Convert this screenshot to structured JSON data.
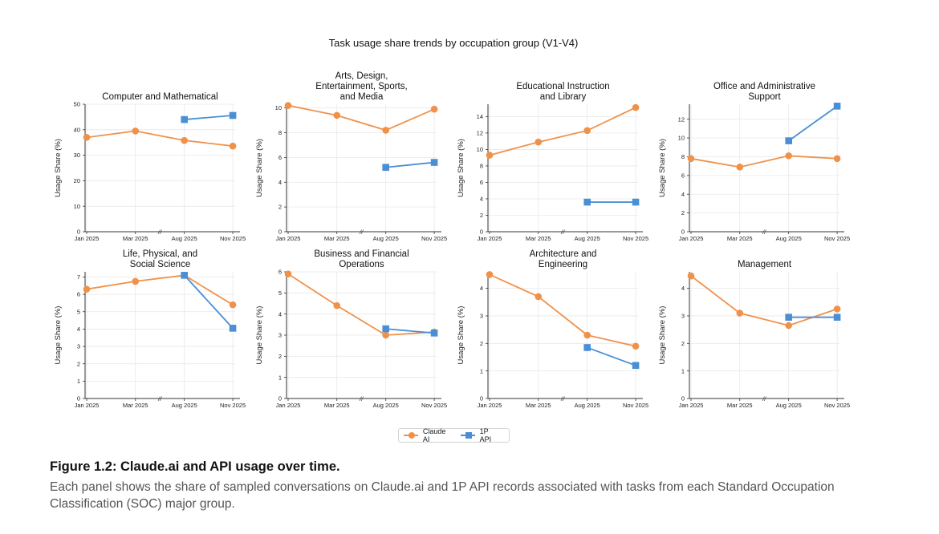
{
  "figure": {
    "title": "Task usage share trends by occupation group (V1-V4)",
    "caption_title": "Figure 1.2: Claude.ai and API usage over time.",
    "caption_text": "Each panel shows the share of sampled conversations on Claude.ai and 1P API records associated with tasks from each Standard Occupation Classification (SOC) major group."
  },
  "legend": {
    "items": [
      {
        "label": "Claude AI",
        "color": "#f0914a",
        "marker": "circle"
      },
      {
        "label": "1P API",
        "color": "#4a8fd6",
        "marker": "square"
      }
    ]
  },
  "chart_data": [
    {
      "type": "line",
      "title": [
        "Computer and Mathematical"
      ],
      "xlabel": "",
      "ylabel": "Usage Share (%)",
      "categories": [
        "Jan 2025",
        "Mar 2025",
        "Aug 2025",
        "Nov 2025"
      ],
      "axis_break": "//",
      "yticks": [
        0,
        10,
        20,
        30,
        40,
        50
      ],
      "ylim": [
        0,
        50
      ],
      "series": [
        {
          "name": "Claude AI",
          "values": [
            37.0,
            39.5,
            35.8,
            33.6
          ]
        },
        {
          "name": "1P API",
          "values": [
            null,
            null,
            44.0,
            45.6
          ]
        }
      ]
    },
    {
      "type": "line",
      "title": [
        "Arts, Design,",
        "Entertainment, Sports,",
        "and Media"
      ],
      "xlabel": "",
      "ylabel": "Usage Share (%)",
      "categories": [
        "Jan 2025",
        "Mar 2025",
        "Aug 2025",
        "Nov 2025"
      ],
      "axis_break": "//",
      "yticks": [
        0,
        2,
        4,
        6,
        8,
        10
      ],
      "ylim": [
        0,
        10.3
      ],
      "series": [
        {
          "name": "Claude AI",
          "values": [
            10.2,
            9.4,
            8.2,
            9.9
          ]
        },
        {
          "name": "1P API",
          "values": [
            null,
            null,
            5.2,
            5.6
          ]
        }
      ]
    },
    {
      "type": "line",
      "title": [
        "Educational Instruction",
        "and Library"
      ],
      "xlabel": "",
      "ylabel": "Usage Share (%)",
      "categories": [
        "Jan 2025",
        "Mar 2025",
        "Aug 2025",
        "Nov 2025"
      ],
      "axis_break": "//",
      "yticks": [
        0,
        2,
        4,
        6,
        8,
        10,
        12,
        14
      ],
      "ylim": [
        0,
        15.5
      ],
      "series": [
        {
          "name": "Claude AI",
          "values": [
            9.3,
            10.9,
            12.3,
            15.1
          ]
        },
        {
          "name": "1P API",
          "values": [
            null,
            null,
            3.6,
            3.6
          ]
        }
      ]
    },
    {
      "type": "line",
      "title": [
        "Office and Administrative",
        "Support"
      ],
      "xlabel": "",
      "ylabel": "Usage Share (%)",
      "categories": [
        "Jan 2025",
        "Mar 2025",
        "Aug 2025",
        "Nov 2025"
      ],
      "axis_break": "//",
      "yticks": [
        0,
        2,
        4,
        6,
        8,
        10,
        12
      ],
      "ylim": [
        0,
        13.6
      ],
      "series": [
        {
          "name": "Claude AI",
          "values": [
            7.8,
            6.9,
            8.1,
            7.8
          ]
        },
        {
          "name": "1P API",
          "values": [
            null,
            null,
            9.7,
            13.4
          ]
        }
      ]
    },
    {
      "type": "line",
      "title": [
        "Life, Physical, and",
        "Social Science"
      ],
      "xlabel": "",
      "ylabel": "Usage Share (%)",
      "categories": [
        "Jan 2025",
        "Mar 2025",
        "Aug 2025",
        "Nov 2025"
      ],
      "axis_break": "//",
      "yticks": [
        0,
        1,
        2,
        3,
        4,
        5,
        6,
        7
      ],
      "ylim": [
        0,
        7.3
      ],
      "series": [
        {
          "name": "Claude AI",
          "values": [
            6.3,
            6.75,
            7.1,
            5.4
          ]
        },
        {
          "name": "1P API",
          "values": [
            null,
            null,
            7.1,
            4.05
          ]
        }
      ]
    },
    {
      "type": "line",
      "title": [
        "Business and Financial",
        "Operations"
      ],
      "xlabel": "",
      "ylabel": "Usage Share (%)",
      "categories": [
        "Jan 2025",
        "Mar 2025",
        "Aug 2025",
        "Nov 2025"
      ],
      "axis_break": "//",
      "yticks": [
        0,
        1,
        2,
        3,
        4,
        5,
        6
      ],
      "ylim": [
        0,
        6
      ],
      "series": [
        {
          "name": "Claude AI",
          "values": [
            5.9,
            4.4,
            3.0,
            3.15
          ]
        },
        {
          "name": "1P API",
          "values": [
            null,
            null,
            3.3,
            3.1
          ]
        }
      ]
    },
    {
      "type": "line",
      "title": [
        "Architecture and",
        "Engineering"
      ],
      "xlabel": "",
      "ylabel": "Usage Share (%)",
      "categories": [
        "Jan 2025",
        "Mar 2025",
        "Aug 2025",
        "Nov 2025"
      ],
      "axis_break": "//",
      "yticks": [
        0,
        1,
        2,
        3,
        4
      ],
      "ylim": [
        0,
        4.6
      ],
      "series": [
        {
          "name": "Claude AI",
          "values": [
            4.5,
            3.7,
            2.3,
            1.9
          ]
        },
        {
          "name": "1P API",
          "values": [
            null,
            null,
            1.85,
            1.2
          ]
        }
      ]
    },
    {
      "type": "line",
      "title": [
        "Management"
      ],
      "xlabel": "",
      "ylabel": "Usage Share (%)",
      "categories": [
        "Jan 2025",
        "Mar 2025",
        "Aug 2025",
        "Nov 2025"
      ],
      "axis_break": "//",
      "yticks": [
        0,
        1,
        2,
        3,
        4
      ],
      "ylim": [
        0,
        4.6
      ],
      "series": [
        {
          "name": "Claude AI",
          "values": [
            4.45,
            3.1,
            2.65,
            3.25
          ]
        },
        {
          "name": "1P API",
          "values": [
            null,
            null,
            2.95,
            2.95
          ]
        }
      ]
    }
  ]
}
